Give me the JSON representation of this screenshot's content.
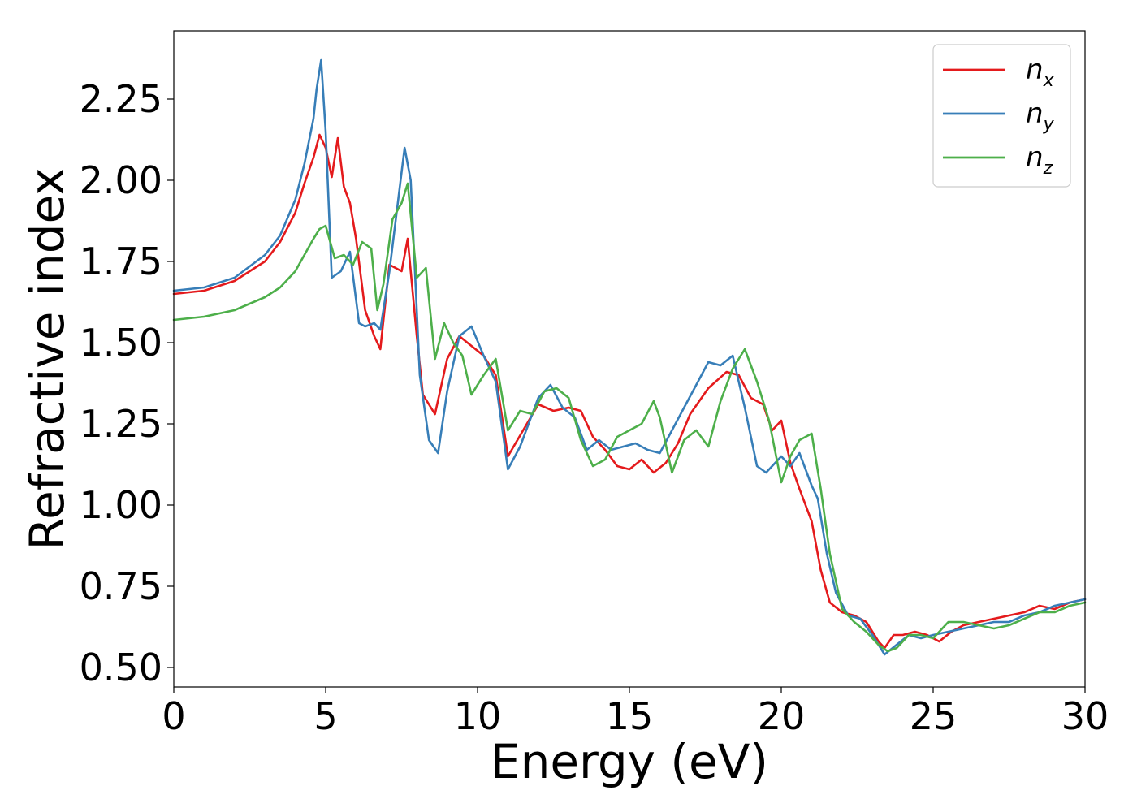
{
  "chart_data": {
    "type": "line",
    "title": "",
    "xlabel": "Energy (eV)",
    "ylabel": "Refractive index",
    "xlim": [
      0,
      30
    ],
    "ylim": [
      0.44,
      2.46
    ],
    "xticks": [
      0,
      5,
      10,
      15,
      20,
      25,
      30
    ],
    "xtick_labels": [
      "0",
      "5",
      "10",
      "15",
      "20",
      "25",
      "30"
    ],
    "yticks": [
      0.5,
      0.75,
      1.0,
      1.25,
      1.5,
      1.75,
      2.0,
      2.25
    ],
    "ytick_labels": [
      "0.50",
      "0.75",
      "1.00",
      "1.25",
      "1.50",
      "1.75",
      "2.00",
      "2.25"
    ],
    "grid": false,
    "legend_position": "top-right",
    "series": [
      {
        "name": "n_x",
        "name_base": "n",
        "name_sub": "x",
        "color": "#e41a1c",
        "x": [
          0,
          1,
          2,
          3,
          3.5,
          4,
          4.3,
          4.6,
          4.8,
          5.0,
          5.2,
          5.4,
          5.6,
          5.8,
          6.0,
          6.3,
          6.6,
          6.8,
          7.1,
          7.3,
          7.5,
          7.7,
          8.0,
          8.2,
          8.6,
          9.0,
          9.4,
          9.8,
          10.2,
          10.6,
          11.0,
          11.5,
          12.0,
          12.5,
          13.0,
          13.4,
          13.8,
          14.2,
          14.6,
          15.0,
          15.4,
          15.8,
          16.2,
          16.6,
          17.0,
          17.6,
          18.2,
          18.6,
          19.0,
          19.4,
          19.7,
          20.0,
          20.3,
          20.6,
          21.0,
          21.3,
          21.6,
          22.0,
          22.4,
          22.8,
          23.2,
          23.4,
          23.7,
          24.0,
          24.4,
          24.8,
          25.2,
          25.6,
          26.0,
          26.5,
          27.0,
          27.5,
          28.0,
          28.5,
          29.0,
          29.5,
          30.0
        ],
        "y": [
          1.65,
          1.66,
          1.69,
          1.75,
          1.81,
          1.9,
          1.99,
          2.07,
          2.14,
          2.1,
          2.01,
          2.13,
          1.98,
          1.93,
          1.82,
          1.6,
          1.52,
          1.48,
          1.74,
          1.73,
          1.72,
          1.82,
          1.52,
          1.34,
          1.28,
          1.45,
          1.52,
          1.49,
          1.46,
          1.4,
          1.15,
          1.23,
          1.31,
          1.29,
          1.3,
          1.29,
          1.21,
          1.17,
          1.12,
          1.11,
          1.14,
          1.1,
          1.13,
          1.19,
          1.28,
          1.36,
          1.41,
          1.4,
          1.33,
          1.31,
          1.23,
          1.26,
          1.13,
          1.05,
          0.95,
          0.8,
          0.7,
          0.67,
          0.66,
          0.64,
          0.58,
          0.56,
          0.6,
          0.6,
          0.61,
          0.6,
          0.58,
          0.61,
          0.63,
          0.64,
          0.65,
          0.66,
          0.67,
          0.69,
          0.68,
          0.7,
          0.71
        ]
      },
      {
        "name": "n_y",
        "name_base": "n",
        "name_sub": "y",
        "color": "#377eb8",
        "x": [
          0,
          1,
          2,
          3,
          3.5,
          4,
          4.3,
          4.6,
          4.7,
          4.85,
          5.0,
          5.2,
          5.5,
          5.8,
          6.1,
          6.3,
          6.6,
          6.8,
          7.1,
          7.4,
          7.6,
          7.8,
          8.1,
          8.4,
          8.7,
          9.0,
          9.4,
          9.8,
          10.2,
          10.6,
          11.0,
          11.4,
          12.0,
          12.4,
          12.8,
          13.2,
          13.6,
          14.0,
          14.4,
          14.8,
          15.2,
          15.6,
          16.0,
          16.4,
          16.8,
          17.2,
          17.6,
          18.0,
          18.4,
          18.8,
          19.2,
          19.5,
          20.0,
          20.3,
          20.6,
          21.0,
          21.2,
          21.5,
          21.8,
          22.2,
          22.6,
          23.0,
          23.4,
          23.8,
          24.2,
          24.6,
          25.0,
          25.5,
          26.0,
          26.5,
          27.0,
          27.5,
          28.0,
          28.5,
          29.0,
          29.5,
          30.0
        ],
        "y": [
          1.66,
          1.67,
          1.7,
          1.77,
          1.83,
          1.94,
          2.05,
          2.19,
          2.28,
          2.37,
          2.15,
          1.7,
          1.72,
          1.78,
          1.56,
          1.55,
          1.56,
          1.54,
          1.72,
          1.95,
          2.1,
          2.0,
          1.4,
          1.2,
          1.16,
          1.35,
          1.52,
          1.55,
          1.46,
          1.38,
          1.11,
          1.18,
          1.33,
          1.37,
          1.3,
          1.27,
          1.17,
          1.2,
          1.17,
          1.18,
          1.19,
          1.17,
          1.16,
          1.23,
          1.3,
          1.37,
          1.44,
          1.43,
          1.46,
          1.3,
          1.12,
          1.1,
          1.15,
          1.12,
          1.16,
          1.06,
          1.02,
          0.85,
          0.73,
          0.66,
          0.65,
          0.6,
          0.54,
          0.57,
          0.6,
          0.59,
          0.6,
          0.61,
          0.62,
          0.63,
          0.64,
          0.64,
          0.66,
          0.67,
          0.69,
          0.7,
          0.71
        ]
      },
      {
        "name": "n_z",
        "name_base": "n",
        "name_sub": "z",
        "color": "#4daf4a",
        "x": [
          0,
          1,
          2,
          3,
          3.5,
          4,
          4.3,
          4.6,
          4.8,
          5.0,
          5.3,
          5.6,
          5.9,
          6.2,
          6.5,
          6.7,
          6.9,
          7.2,
          7.5,
          7.7,
          8.0,
          8.3,
          8.6,
          8.9,
          9.2,
          9.5,
          9.8,
          10.2,
          10.6,
          11.0,
          11.4,
          11.8,
          12.2,
          12.6,
          13.0,
          13.4,
          13.8,
          14.2,
          14.6,
          15.0,
          15.4,
          15.8,
          16.0,
          16.4,
          16.8,
          17.2,
          17.6,
          18.0,
          18.4,
          18.8,
          19.2,
          19.6,
          20.0,
          20.3,
          20.6,
          21.0,
          21.3,
          21.6,
          22.0,
          22.4,
          22.8,
          23.2,
          23.5,
          23.8,
          24.2,
          24.6,
          25.0,
          25.5,
          26.0,
          26.5,
          27.0,
          27.5,
          28.0,
          28.5,
          29.0,
          29.5,
          30.0
        ],
        "y": [
          1.57,
          1.58,
          1.6,
          1.64,
          1.67,
          1.72,
          1.77,
          1.82,
          1.85,
          1.86,
          1.76,
          1.77,
          1.74,
          1.81,
          1.79,
          1.6,
          1.68,
          1.88,
          1.93,
          1.99,
          1.7,
          1.73,
          1.45,
          1.56,
          1.5,
          1.46,
          1.34,
          1.4,
          1.45,
          1.23,
          1.29,
          1.28,
          1.35,
          1.36,
          1.33,
          1.2,
          1.12,
          1.14,
          1.21,
          1.23,
          1.25,
          1.32,
          1.27,
          1.1,
          1.2,
          1.23,
          1.18,
          1.32,
          1.42,
          1.48,
          1.38,
          1.26,
          1.07,
          1.15,
          1.2,
          1.22,
          1.05,
          0.85,
          0.68,
          0.64,
          0.61,
          0.57,
          0.55,
          0.56,
          0.6,
          0.6,
          0.59,
          0.64,
          0.64,
          0.63,
          0.62,
          0.63,
          0.65,
          0.67,
          0.67,
          0.69,
          0.7
        ]
      }
    ]
  }
}
